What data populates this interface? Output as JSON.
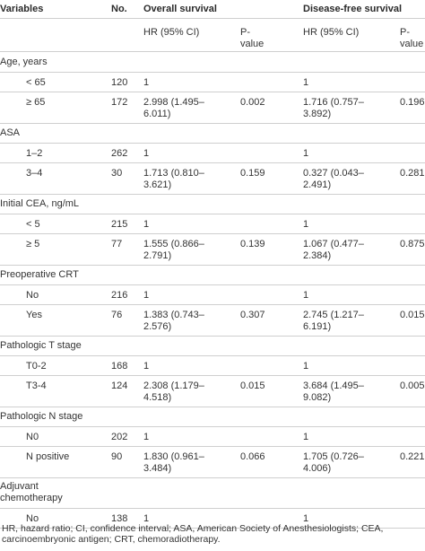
{
  "header": {
    "variables": "Variables",
    "no": "No.",
    "overall_survival": "Overall survival",
    "disease_free_survival": "Disease-free survival",
    "hr_os": "HR (95% CI)",
    "p_os_1": "P-",
    "p_os_2": "value",
    "hr_dfs": "HR (95% CI)",
    "p_dfs_1": "P-",
    "p_dfs_2": "value"
  },
  "rows": [
    {
      "kind": "group",
      "label": "Age, years"
    },
    {
      "kind": "data",
      "label": "< 65",
      "n": "120",
      "os_hr": [
        "1"
      ],
      "os_p": "",
      "dfs_hr": [
        "1"
      ],
      "dfs_p": ""
    },
    {
      "kind": "data",
      "label": "≥ 65",
      "n": "172",
      "os_hr": [
        "2.998 (1.495–",
        "6.011)"
      ],
      "os_p": "0.002",
      "dfs_hr": [
        "1.716 (0.757–",
        "3.892)"
      ],
      "dfs_p": "0.196"
    },
    {
      "kind": "group",
      "label": "ASA"
    },
    {
      "kind": "data",
      "label": "1–2",
      "n": "262",
      "os_hr": [
        "1"
      ],
      "os_p": "",
      "dfs_hr": [
        "1"
      ],
      "dfs_p": ""
    },
    {
      "kind": "data",
      "label": "3–4",
      "n": "30",
      "os_hr": [
        "1.713 (0.810–",
        "3.621)"
      ],
      "os_p": "0.159",
      "dfs_hr": [
        "0.327 (0.043–",
        "2.491)"
      ],
      "dfs_p": "0.281"
    },
    {
      "kind": "group",
      "label": "Initial CEA, ng/mL"
    },
    {
      "kind": "data",
      "label": "< 5",
      "n": "215",
      "os_hr": [
        "1"
      ],
      "os_p": "",
      "dfs_hr": [
        "1"
      ],
      "dfs_p": ""
    },
    {
      "kind": "data",
      "label": "≥ 5",
      "n": "77",
      "os_hr": [
        "1.555 (0.866–",
        "2.791)"
      ],
      "os_p": "0.139",
      "dfs_hr": [
        "1.067 (0.477–",
        "2.384)"
      ],
      "dfs_p": "0.875"
    },
    {
      "kind": "group",
      "label": "Preoperative CRT"
    },
    {
      "kind": "data",
      "label": "No",
      "n": "216",
      "os_hr": [
        "1"
      ],
      "os_p": "",
      "dfs_hr": [
        "1"
      ],
      "dfs_p": ""
    },
    {
      "kind": "data",
      "label": "Yes",
      "n": "76",
      "os_hr": [
        "1.383 (0.743–",
        "2.576)"
      ],
      "os_p": "0.307",
      "dfs_hr": [
        "2.745 (1.217–",
        "6.191)"
      ],
      "dfs_p": "0.015"
    },
    {
      "kind": "group",
      "label": "Pathologic T stage"
    },
    {
      "kind": "data",
      "label": "T0-2",
      "n": "168",
      "os_hr": [
        "1"
      ],
      "os_p": "",
      "dfs_hr": [
        "1"
      ],
      "dfs_p": ""
    },
    {
      "kind": "data",
      "label": "T3-4",
      "n": "124",
      "os_hr": [
        "2.308 (1.179–",
        "4.518)"
      ],
      "os_p": "0.015",
      "dfs_hr": [
        "3.684 (1.495–",
        "9.082)"
      ],
      "dfs_p": "0.005"
    },
    {
      "kind": "group",
      "label": "Pathologic N stage"
    },
    {
      "kind": "data",
      "label": "N0",
      "n": "202",
      "os_hr": [
        "1"
      ],
      "os_p": "",
      "dfs_hr": [
        "1"
      ],
      "dfs_p": ""
    },
    {
      "kind": "data",
      "label": "N positive",
      "n": "90",
      "os_hr": [
        "1.830 (0.961–",
        "3.484)"
      ],
      "os_p": "0.066",
      "dfs_hr": [
        "1.705 (0.726–",
        "4.006)"
      ],
      "dfs_p": "0.221"
    },
    {
      "kind": "group2",
      "label": [
        "Adjuvant",
        "chemotherapy"
      ]
    },
    {
      "kind": "data",
      "label": "No",
      "n": "138",
      "os_hr": [
        "1"
      ],
      "os_p": "",
      "dfs_hr": [
        "1"
      ],
      "dfs_p": ""
    }
  ],
  "footnote": "HR, hazard ratio; CI, confidence interval; ASA, American Society of Anesthesiologists; CEA, carcinoembryonic antigen; CRT, chemoradiotherapy."
}
